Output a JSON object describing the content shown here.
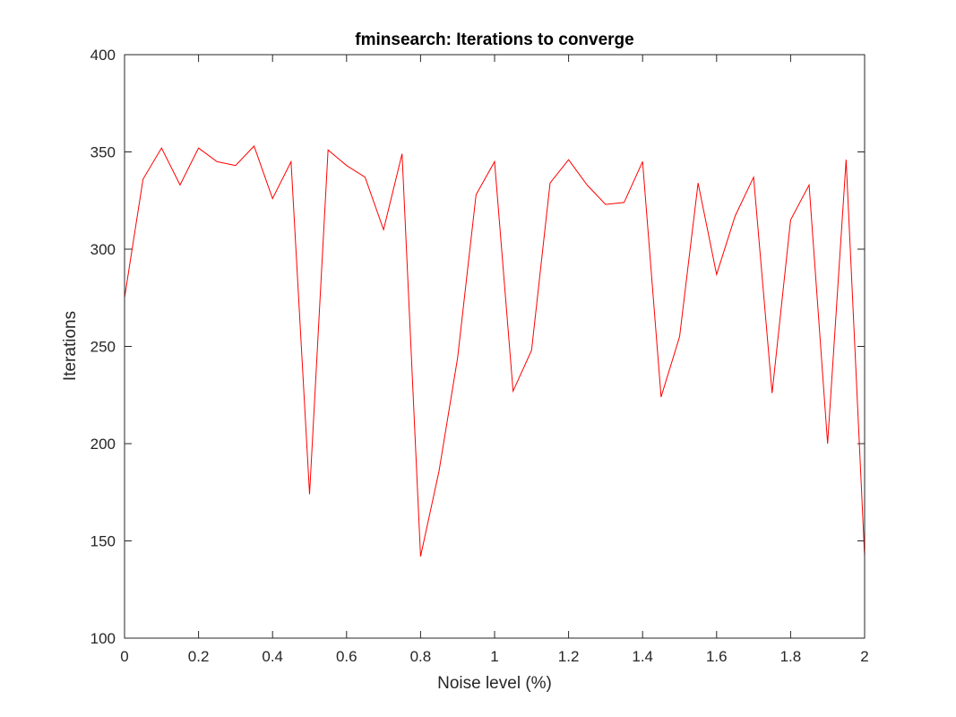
{
  "chart_data": {
    "type": "line",
    "title": "fminsearch: Iterations to converge",
    "xlabel": "Noise level (%)",
    "ylabel": "Iterations",
    "xlim": [
      0,
      2
    ],
    "ylim": [
      100,
      400
    ],
    "xticks": [
      "0",
      "0.2",
      "0.4",
      "0.6",
      "0.8",
      "1",
      "1.2",
      "1.4",
      "1.6",
      "1.8",
      "2"
    ],
    "yticks": [
      "100",
      "150",
      "200",
      "250",
      "300",
      "350",
      "400"
    ],
    "grid": false,
    "box": true,
    "series": [
      {
        "color": "#ff0000",
        "x": [
          0,
          0.05,
          0.1,
          0.15,
          0.2,
          0.25,
          0.3,
          0.35,
          0.4,
          0.45,
          0.5,
          0.55,
          0.6,
          0.65,
          0.7,
          0.75,
          0.8,
          0.85,
          0.9,
          0.95,
          1,
          1.05,
          1.1,
          1.15,
          1.2,
          1.25,
          1.3,
          1.35,
          1.4,
          1.45,
          1.5,
          1.55,
          1.6,
          1.65,
          1.7,
          1.75,
          1.8,
          1.85,
          1.9,
          1.95,
          2
        ],
        "values": [
          275,
          336,
          352,
          333,
          352,
          345,
          343,
          353,
          326,
          345,
          174,
          351,
          343,
          337,
          310,
          349,
          142,
          186,
          244,
          328,
          345,
          227,
          248,
          334,
          346,
          333,
          323,
          324,
          345,
          224,
          255,
          334,
          287,
          317,
          337,
          226,
          315,
          333,
          200,
          346,
          142
        ]
      }
    ]
  }
}
